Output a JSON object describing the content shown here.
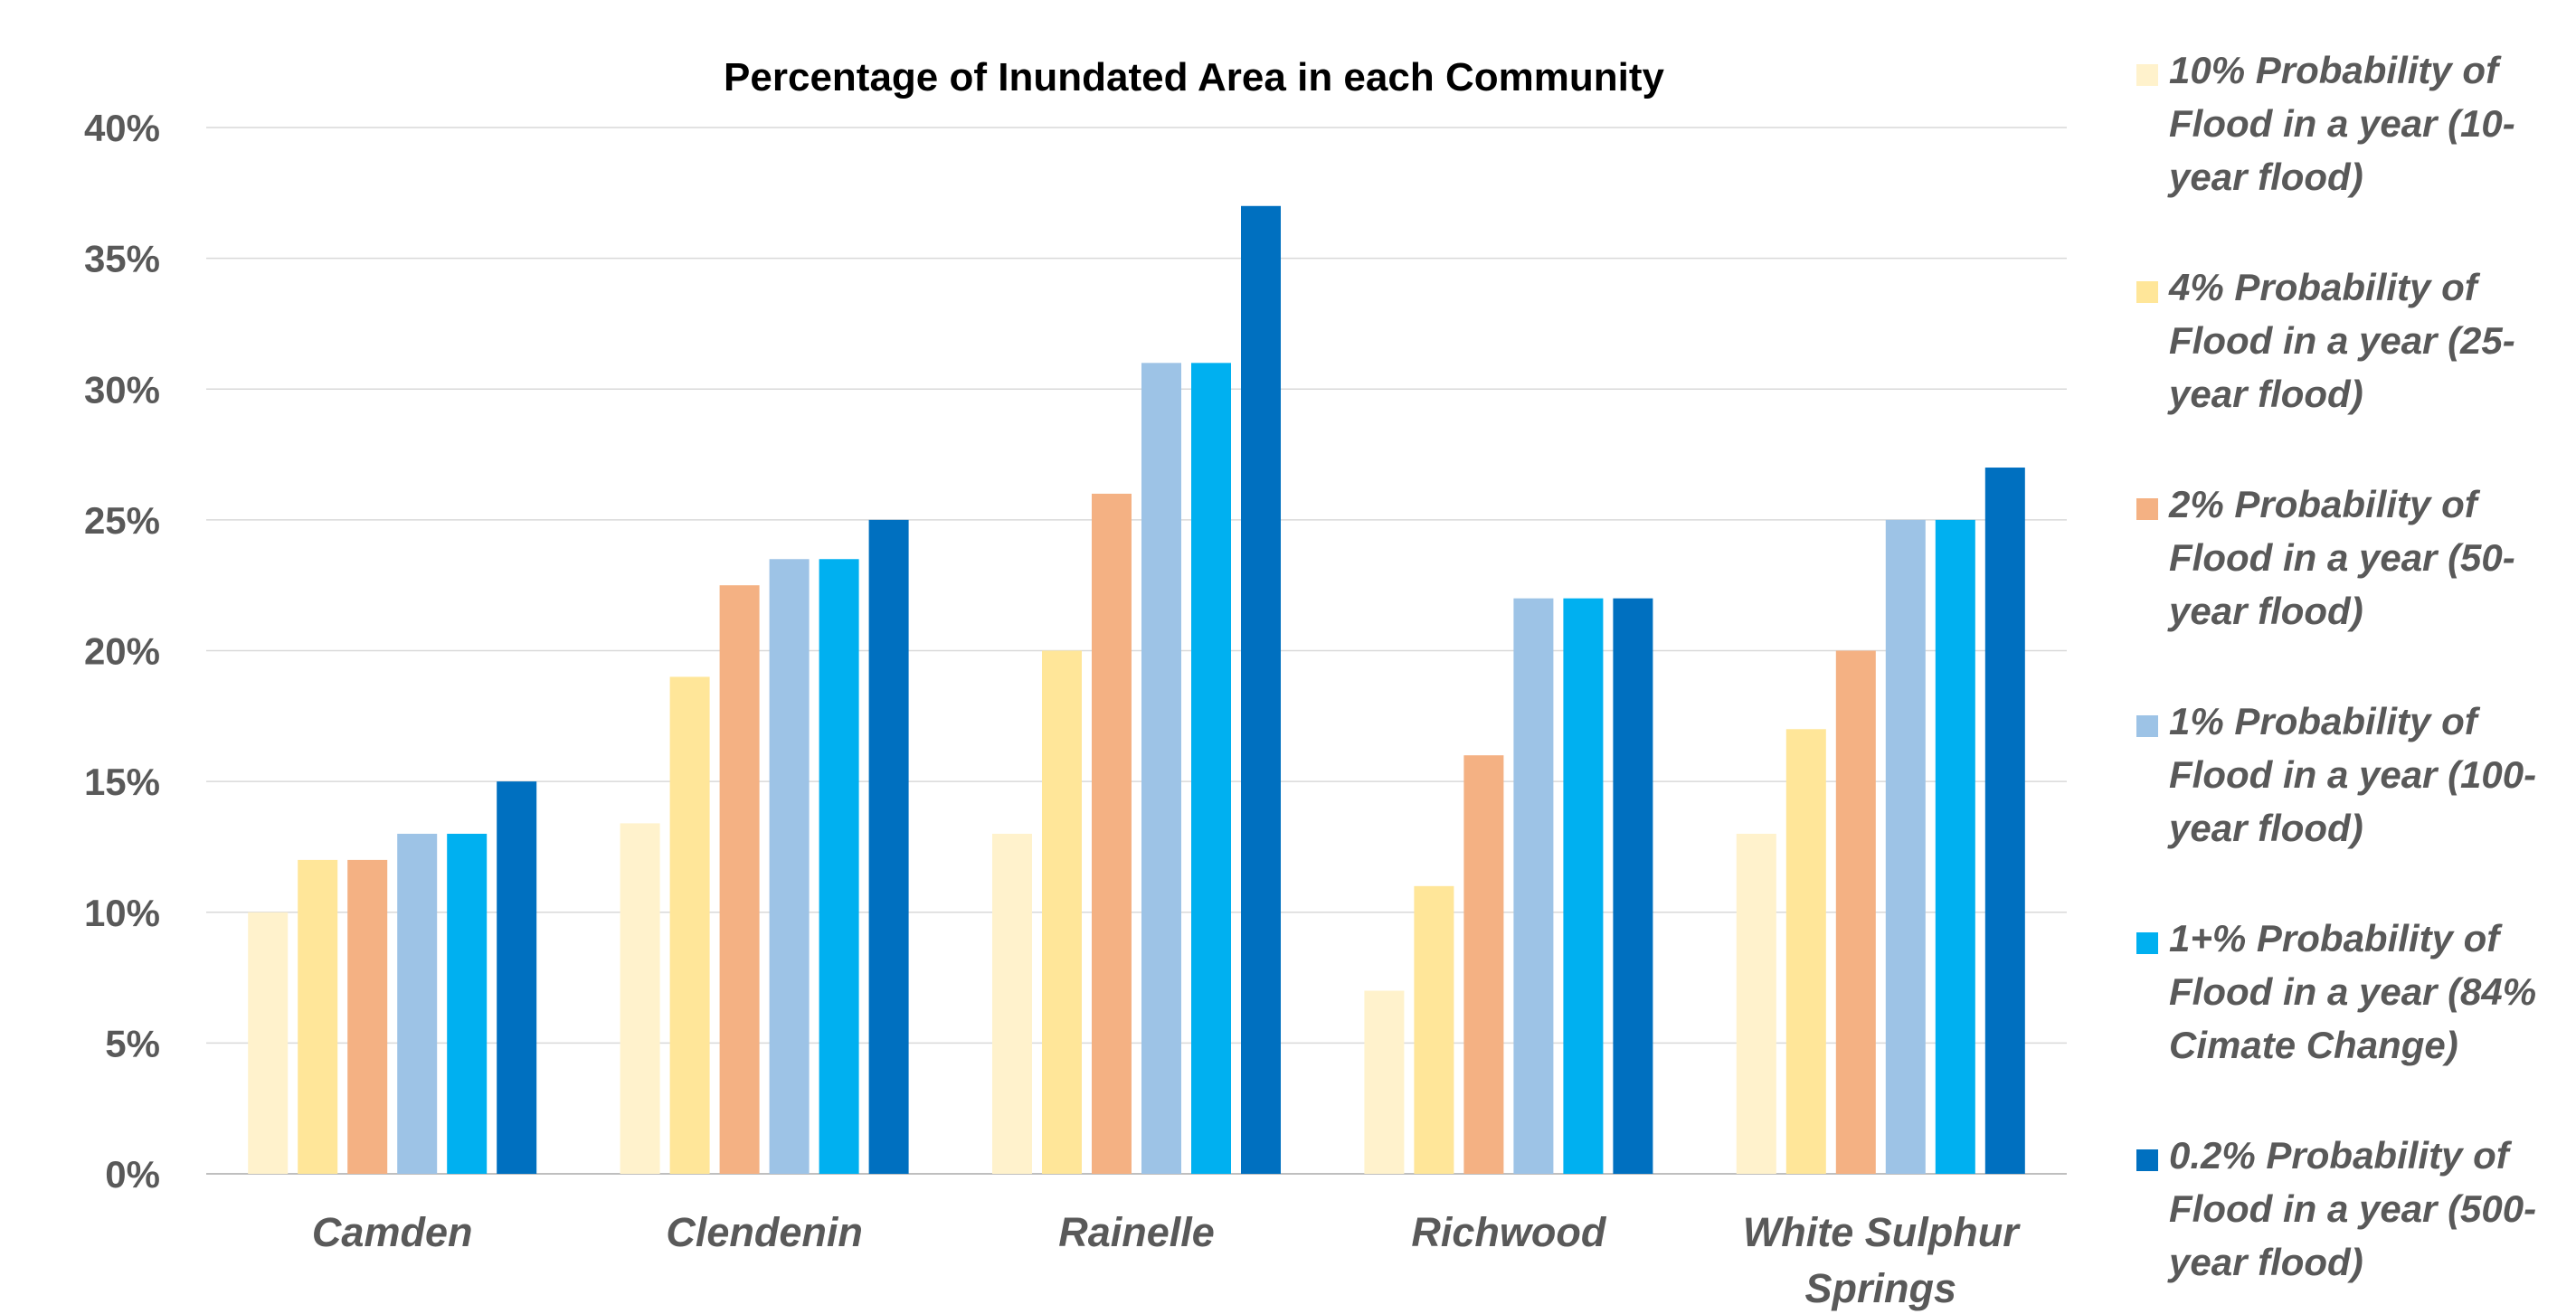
{
  "chart_data": {
    "type": "bar",
    "title": "Percentage of Inundated Area in each Community",
    "xlabel": "",
    "ylabel": "",
    "ylim": [
      0,
      40
    ],
    "y_tick_step": 5,
    "y_tick_suffix": "%",
    "grid": true,
    "legend_position": "right",
    "categories": [
      "Camden",
      "Clendenin",
      "Rainelle",
      "Richwood",
      "White Sulphur Springs"
    ],
    "category_label_lines": [
      [
        "Camden"
      ],
      [
        "Clendenin"
      ],
      [
        "Rainelle"
      ],
      [
        "Richwood"
      ],
      [
        "White Sulphur",
        "Springs"
      ]
    ],
    "series": [
      {
        "name": "10% Probability of Flood in a year (10-year flood)",
        "legend_lines": [
          "10% Probability of",
          "Flood in a year (10-",
          "year flood)"
        ],
        "color": "#FFF2CC",
        "values": [
          10,
          13.4,
          13,
          7,
          13
        ]
      },
      {
        "name": "4% Probability of Flood in a year (25-year flood)",
        "legend_lines": [
          "4% Probability of",
          "Flood in a year (25-",
          "year flood)"
        ],
        "color": "#FFE699",
        "values": [
          12,
          19,
          20,
          11,
          17
        ]
      },
      {
        "name": "2% Probability of Flood in a year (50-year flood)",
        "legend_lines": [
          "2% Probability of",
          "Flood in a year (50-",
          "year flood)"
        ],
        "color": "#F4B183",
        "values": [
          12,
          22.5,
          26,
          16,
          20
        ]
      },
      {
        "name": "1% Probability of Flood in a year (100-year flood)",
        "legend_lines": [
          "1% Probability of",
          "Flood in a year (100-",
          "year flood)"
        ],
        "color": "#9DC3E6",
        "values": [
          13,
          23.5,
          31,
          22,
          25
        ]
      },
      {
        "name": "1+% Probability of Flood in a year (84% Cimate Change)",
        "legend_lines": [
          "1+% Probability of",
          "Flood in a year (84%",
          "Cimate Change)"
        ],
        "color": "#00B0F0",
        "values": [
          13,
          23.5,
          31,
          22,
          25
        ]
      },
      {
        "name": "0.2% Probability of Flood in a year (500-year flood)",
        "legend_lines": [
          "0.2% Probability of",
          "Flood in a year (500-",
          "year flood)"
        ],
        "color": "#0070C0",
        "values": [
          15,
          25,
          37,
          22,
          27
        ]
      }
    ]
  }
}
